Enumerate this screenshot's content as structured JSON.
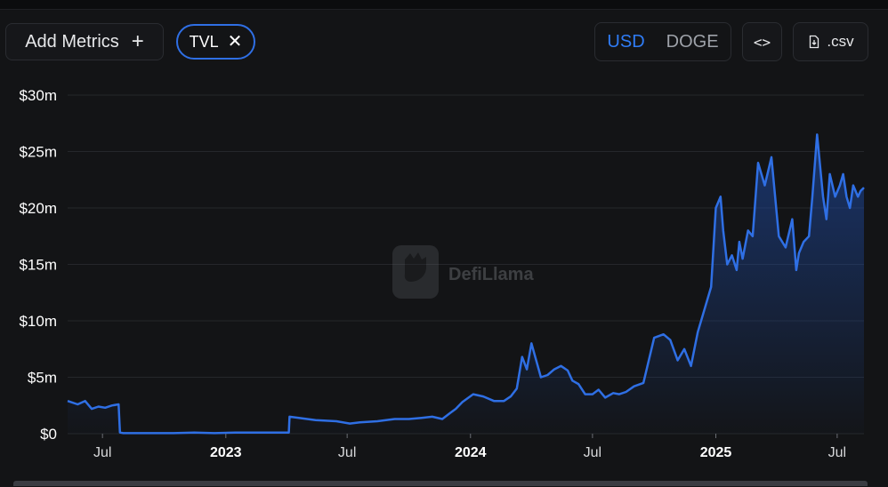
{
  "toolbar": {
    "add_metrics_label": "Add Metrics",
    "add_icon": "plus-icon",
    "metric_chip": "TVL",
    "remove_icon": "close-icon",
    "currency_options": [
      "USD",
      "DOGE"
    ],
    "currency_selected": "USD",
    "embed_label": "<>",
    "csv_label": ".csv",
    "csv_icon": "download-file-icon"
  },
  "watermark": {
    "text": "DefiLlama"
  },
  "colors": {
    "line": "#2f6fe4",
    "accent": "#2f7cf6",
    "background": "#131416",
    "grid": "#25272b"
  },
  "chart_data": {
    "type": "area",
    "title": "",
    "xlabel": "",
    "ylabel": "",
    "y_ticks": [
      "$0",
      "$5m",
      "$10m",
      "$15m",
      "$20m",
      "$25m",
      "$30m"
    ],
    "x_ticks": [
      "Jul",
      "2023",
      "Jul",
      "2024",
      "Jul",
      "2025",
      "Jul"
    ],
    "x_tick_dates": [
      "2022-07-01",
      "2023-01-01",
      "2023-07-01",
      "2024-01-01",
      "2024-07-01",
      "2025-01-01",
      "2025-07-01"
    ],
    "x_tick_bold": [
      false,
      true,
      false,
      true,
      false,
      true,
      false
    ],
    "ylim": [
      0,
      30
    ],
    "xlim": [
      "2022-05-10",
      "2025-08-10"
    ],
    "y_unit": "$m",
    "grid": true,
    "legend": "none",
    "series": [
      {
        "x": [
          "2022-05-10",
          "2022-05-25",
          "2022-06-05",
          "2022-06-15",
          "2022-06-25",
          "2022-07-05",
          "2022-07-15",
          "2022-07-25",
          "2022-07-27",
          "2022-08-01",
          "2022-09-15",
          "2022-10-15",
          "2022-11-15",
          "2022-12-15",
          "2023-01-15",
          "2023-02-15",
          "2023-03-15",
          "2023-04-05",
          "2023-04-06",
          "2023-04-20",
          "2023-05-15",
          "2023-06-15",
          "2023-07-05",
          "2023-07-20",
          "2023-08-15",
          "2023-09-10",
          "2023-10-01",
          "2023-10-20",
          "2023-11-05",
          "2023-11-20",
          "2023-12-01",
          "2023-12-10",
          "2023-12-20",
          "2024-01-05",
          "2024-01-20",
          "2024-02-05",
          "2024-02-20",
          "2024-03-01",
          "2024-03-10",
          "2024-03-18",
          "2024-03-25",
          "2024-04-01",
          "2024-04-08",
          "2024-04-15",
          "2024-04-25",
          "2024-05-05",
          "2024-05-15",
          "2024-05-25",
          "2024-06-01",
          "2024-06-10",
          "2024-06-20",
          "2024-07-01",
          "2024-07-10",
          "2024-07-20",
          "2024-08-01",
          "2024-08-10",
          "2024-08-20",
          "2024-09-01",
          "2024-09-15",
          "2024-10-01",
          "2024-10-15",
          "2024-10-25",
          "2024-11-05",
          "2024-11-15",
          "2024-11-25",
          "2024-12-05",
          "2024-12-15",
          "2024-12-25",
          "2025-01-01",
          "2025-01-08",
          "2025-01-12",
          "2025-01-18",
          "2025-01-25",
          "2025-02-01",
          "2025-02-05",
          "2025-02-10",
          "2025-02-18",
          "2025-02-25",
          "2025-03-05",
          "2025-03-15",
          "2025-03-25",
          "2025-04-05",
          "2025-04-15",
          "2025-04-25",
          "2025-05-01",
          "2025-05-05",
          "2025-05-12",
          "2025-05-20",
          "2025-05-25",
          "2025-06-01",
          "2025-06-10",
          "2025-06-15",
          "2025-06-20",
          "2025-06-28",
          "2025-07-05",
          "2025-07-10",
          "2025-07-15",
          "2025-07-20",
          "2025-07-25",
          "2025-08-01",
          "2025-08-05",
          "2025-08-10"
        ],
        "y": [
          2.9,
          2.6,
          2.9,
          2.2,
          2.4,
          2.3,
          2.5,
          2.6,
          0.1,
          0.05,
          0.05,
          0.05,
          0.1,
          0.05,
          0.1,
          0.1,
          0.1,
          0.1,
          1.5,
          1.4,
          1.2,
          1.1,
          0.9,
          1.0,
          1.1,
          1.3,
          1.3,
          1.4,
          1.5,
          1.3,
          1.8,
          2.2,
          2.8,
          3.5,
          3.3,
          2.9,
          2.9,
          3.3,
          4.0,
          6.8,
          5.7,
          8.0,
          6.5,
          5.0,
          5.2,
          5.7,
          6.0,
          5.6,
          4.7,
          4.4,
          3.5,
          3.5,
          3.9,
          3.2,
          3.6,
          3.5,
          3.7,
          4.2,
          4.5,
          8.5,
          8.8,
          8.3,
          6.5,
          7.5,
          6.0,
          9.0,
          11.0,
          13.0,
          20.0,
          21.0,
          18.0,
          15.0,
          15.8,
          14.5,
          17.0,
          15.5,
          18.0,
          17.5,
          24.0,
          22.0,
          24.5,
          17.5,
          16.5,
          19.0,
          14.5,
          16.0,
          17.0,
          17.5,
          21.0,
          26.5,
          21.0,
          19.0,
          23.0,
          21.0,
          22.0,
          23.0,
          21.0,
          20.0,
          22.0,
          21.0,
          21.5,
          21.8
        ]
      }
    ]
  }
}
